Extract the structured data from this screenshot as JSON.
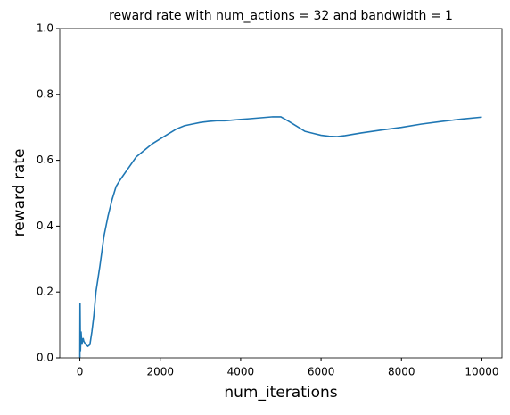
{
  "chart_data": {
    "type": "line",
    "title": "reward rate with num_actions = 32 and bandwidth = 1",
    "xlabel": "num_iterations",
    "ylabel": "reward rate",
    "x": [
      0,
      5,
      15,
      30,
      50,
      80,
      100,
      150,
      200,
      250,
      300,
      350,
      400,
      500,
      600,
      700,
      800,
      900,
      1000,
      1200,
      1400,
      1600,
      1800,
      2000,
      2200,
      2400,
      2600,
      2800,
      3000,
      3200,
      3400,
      3600,
      3800,
      4000,
      4200,
      4400,
      4600,
      4800,
      5000,
      5200,
      5400,
      5600,
      5800,
      6000,
      6200,
      6400,
      6600,
      6800,
      7000,
      7500,
      8000,
      8500,
      9000,
      9500,
      10000
    ],
    "values": [
      0,
      0.167,
      0.02,
      0.08,
      0.04,
      0.06,
      0.05,
      0.04,
      0.035,
      0.04,
      0.08,
      0.13,
      0.2,
      0.28,
      0.37,
      0.43,
      0.48,
      0.52,
      0.54,
      0.575,
      0.61,
      0.63,
      0.65,
      0.665,
      0.68,
      0.695,
      0.705,
      0.71,
      0.715,
      0.718,
      0.72,
      0.72,
      0.722,
      0.724,
      0.726,
      0.728,
      0.73,
      0.732,
      0.732,
      0.718,
      0.703,
      0.688,
      0.682,
      0.676,
      0.673,
      0.672,
      0.675,
      0.679,
      0.683,
      0.692,
      0.7,
      0.71,
      0.718,
      0.725,
      0.731
    ],
    "color": "#1f77b4",
    "xlim": [
      -500,
      10500
    ],
    "xticks": [
      0,
      2000,
      4000,
      6000,
      8000,
      10000
    ],
    "ylim": [
      0,
      1
    ],
    "yticks": [
      {
        "value": 0,
        "label": "0.0"
      },
      0.2,
      0.4,
      0.6,
      0.8,
      {
        "value": 1,
        "label": "1.0"
      }
    ]
  }
}
